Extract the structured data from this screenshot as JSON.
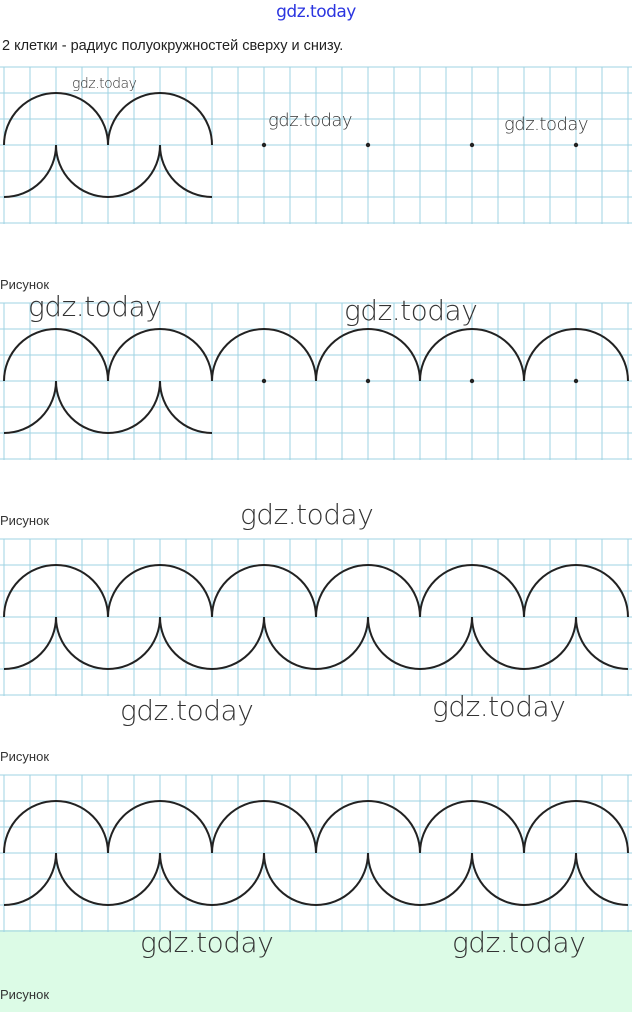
{
  "site_header": "gdz.today",
  "task_text": "2 клетки - радиус полуокружностей сверху и снизу.",
  "watermark": "gdz.today",
  "colors": {
    "grid": "#9fd3e3",
    "stroke": "#222222",
    "header_link": "#2b35e0",
    "footer_band": "#dcfbe6"
  },
  "figures": [
    {
      "caption": "Рисунок",
      "upper_arcs": 2,
      "lower_arcs": 2,
      "dots": 4
    },
    {
      "caption": "Рисунок",
      "upper_arcs": 6,
      "lower_arcs": 2,
      "dots": 4
    },
    {
      "caption": "Рисунок",
      "upper_arcs": 6,
      "lower_arcs": 6,
      "dots": 0
    },
    {
      "caption": "Рисунок",
      "upper_arcs": 6,
      "lower_arcs": 6,
      "dots": 0
    }
  ]
}
